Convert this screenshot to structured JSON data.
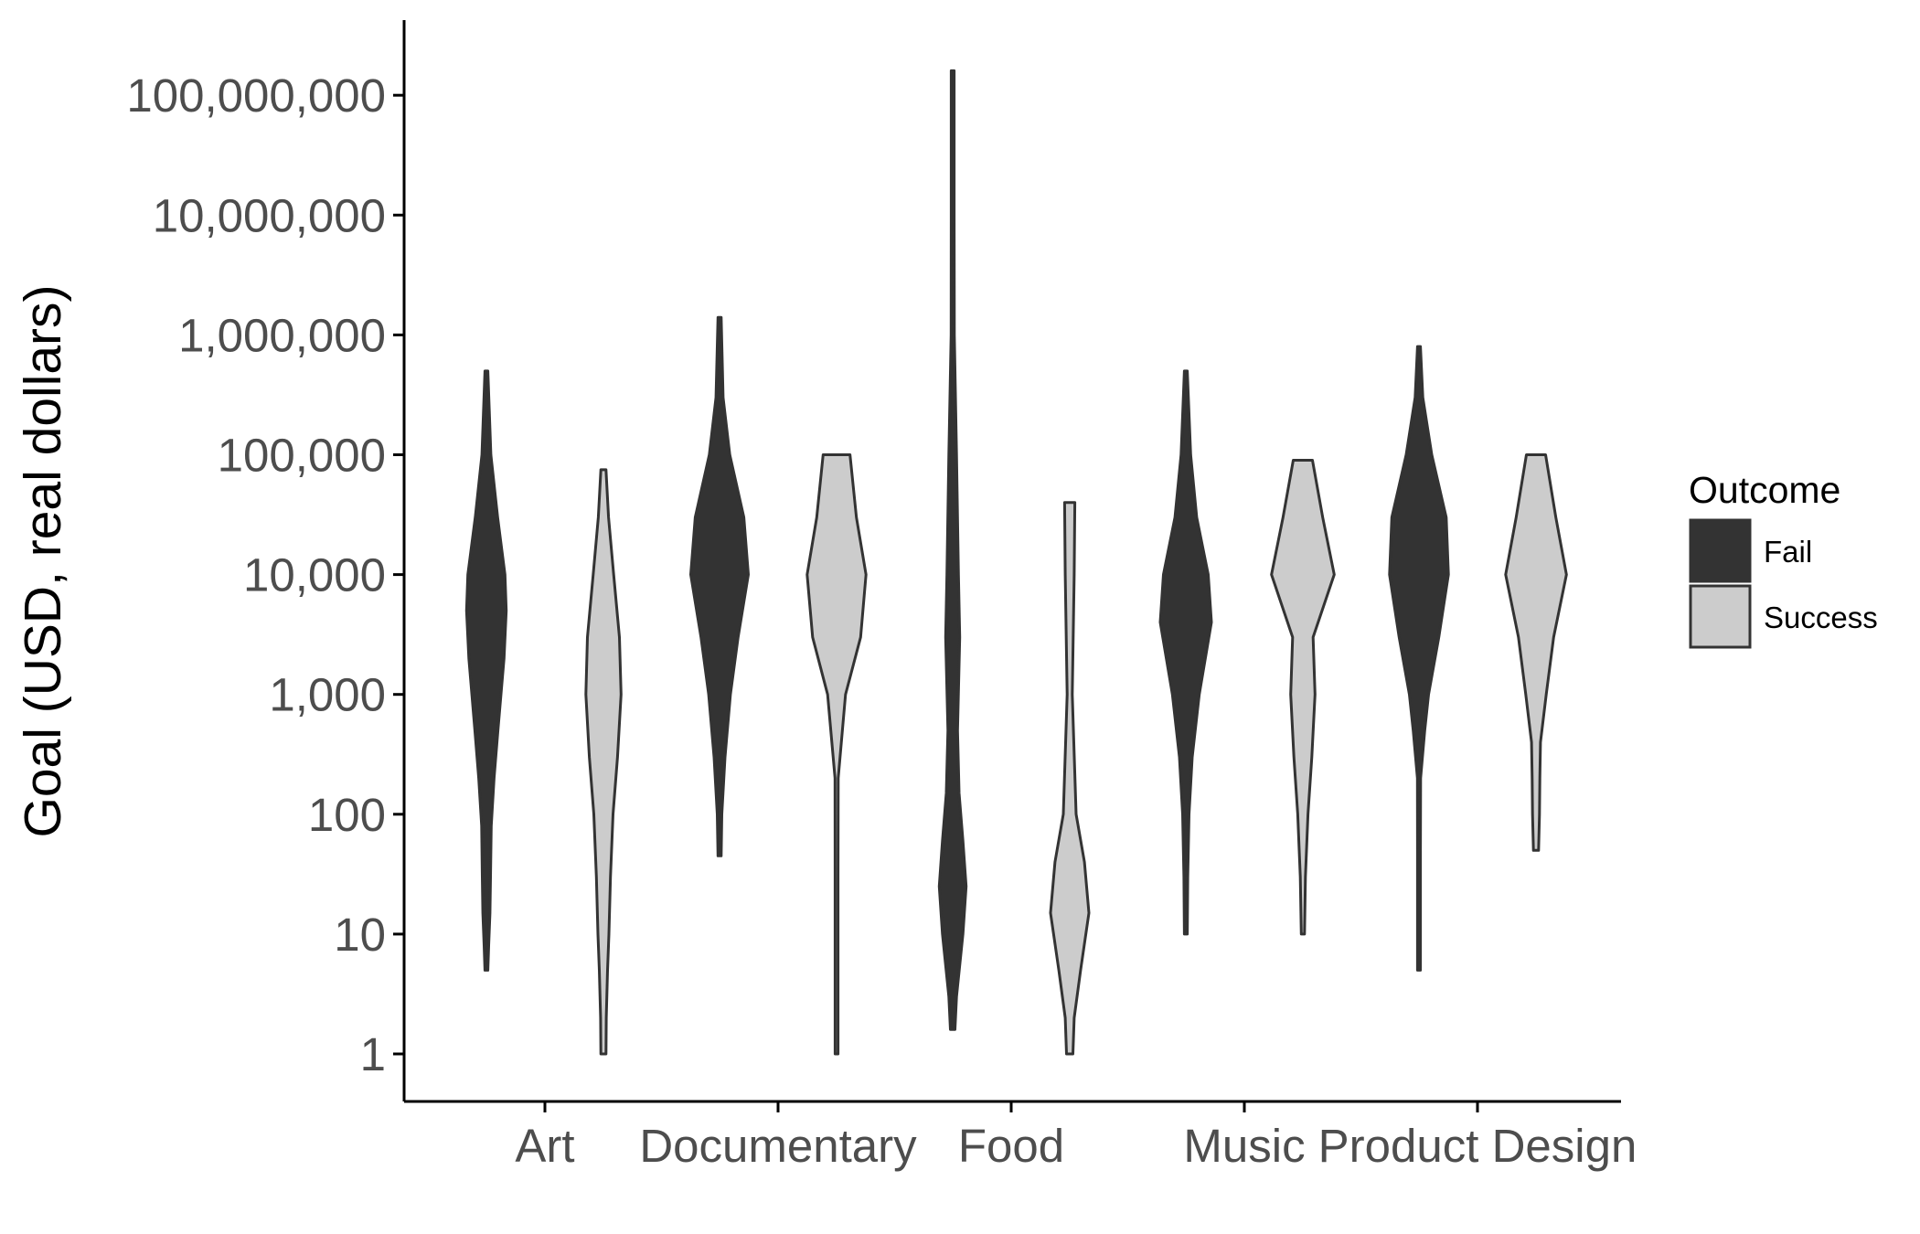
{
  "chart_data": {
    "type": "violin",
    "ylabel": "Goal (USD, real dollars)",
    "xlabel": "",
    "y_scale": "log10",
    "ylim": [
      0.6,
      400000000
    ],
    "y_ticks": [
      {
        "value": 1,
        "label": "1"
      },
      {
        "value": 10,
        "label": "10"
      },
      {
        "value": 100,
        "label": "100"
      },
      {
        "value": 1000,
        "label": "1,000"
      },
      {
        "value": 10000,
        "label": "10,000"
      },
      {
        "value": 100000,
        "label": "100,000"
      },
      {
        "value": 1000000,
        "label": "1,000,000"
      },
      {
        "value": 10000000,
        "label": "10,000,000"
      },
      {
        "value": 100000000,
        "label": "100,000,000"
      }
    ],
    "categories": [
      "Art",
      "Documentary",
      "Food",
      "Music",
      "Product Design"
    ],
    "legend": {
      "title": "Outcome",
      "position": "right",
      "entries": [
        {
          "name": "Fail",
          "color": "#333333"
        },
        {
          "name": "Success",
          "color": "#cccccc"
        }
      ]
    },
    "violins": [
      {
        "category": "Art",
        "outcome": "Fail",
        "color": "#333333",
        "profile": [
          [
            5,
            0.02
          ],
          [
            8,
            0.07
          ],
          [
            15,
            0.11
          ],
          [
            30,
            0.13
          ],
          [
            80,
            0.15
          ],
          [
            200,
            0.24
          ],
          [
            500,
            0.36
          ],
          [
            2000,
            0.55
          ],
          [
            5000,
            0.62
          ],
          [
            10000,
            0.58
          ],
          [
            30000,
            0.35
          ],
          [
            100000,
            0.14
          ],
          [
            500000,
            0.04
          ]
        ]
      },
      {
        "category": "Art",
        "outcome": "Success",
        "color": "#cccccc",
        "profile": [
          [
            1,
            0.08
          ],
          [
            2,
            0.09
          ],
          [
            5,
            0.13
          ],
          [
            10,
            0.17
          ],
          [
            30,
            0.22
          ],
          [
            100,
            0.3
          ],
          [
            300,
            0.44
          ],
          [
            1000,
            0.55
          ],
          [
            3000,
            0.5
          ],
          [
            10000,
            0.32
          ],
          [
            30000,
            0.16
          ],
          [
            75000,
            0.08
          ]
        ]
      },
      {
        "category": "Documentary",
        "outcome": "Fail",
        "color": "#333333",
        "profile": [
          [
            45,
            0.05
          ],
          [
            100,
            0.07
          ],
          [
            300,
            0.17
          ],
          [
            1000,
            0.34
          ],
          [
            3000,
            0.58
          ],
          [
            10000,
            0.9
          ],
          [
            30000,
            0.76
          ],
          [
            100000,
            0.32
          ],
          [
            300000,
            0.11
          ],
          [
            1400000,
            0.05
          ]
        ]
      },
      {
        "category": "Documentary",
        "outcome": "Success",
        "color": "#cccccc",
        "profile": [
          [
            1,
            0.02
          ],
          [
            5,
            0.03
          ],
          [
            30,
            0.03
          ],
          [
            200,
            0.05
          ],
          [
            1000,
            0.28
          ],
          [
            3000,
            0.75
          ],
          [
            10000,
            0.92
          ],
          [
            30000,
            0.62
          ],
          [
            100000,
            0.42
          ]
        ]
      },
      {
        "category": "Food",
        "outcome": "Fail",
        "color": "#333333",
        "profile": [
          [
            1.6,
            0.07
          ],
          [
            3,
            0.12
          ],
          [
            10,
            0.32
          ],
          [
            25,
            0.42
          ],
          [
            60,
            0.32
          ],
          [
            150,
            0.2
          ],
          [
            500,
            0.15
          ],
          [
            3000,
            0.22
          ],
          [
            10000,
            0.18
          ],
          [
            100000,
            0.12
          ],
          [
            1000000,
            0.05
          ],
          [
            10000000,
            0.01
          ],
          [
            160000000,
            0.01
          ]
        ]
      },
      {
        "category": "Food",
        "outcome": "Success",
        "color": "#cccccc",
        "profile": [
          [
            1,
            0.1
          ],
          [
            2,
            0.14
          ],
          [
            5,
            0.34
          ],
          [
            15,
            0.6
          ],
          [
            40,
            0.46
          ],
          [
            100,
            0.2
          ],
          [
            1000,
            0.08
          ],
          [
            10000,
            0.14
          ],
          [
            40000,
            0.16
          ]
        ]
      },
      {
        "category": "Music",
        "outcome": "Fail",
        "color": "#333333",
        "profile": [
          [
            10,
            0.04
          ],
          [
            30,
            0.06
          ],
          [
            100,
            0.1
          ],
          [
            300,
            0.2
          ],
          [
            1000,
            0.42
          ],
          [
            4000,
            0.8
          ],
          [
            10000,
            0.7
          ],
          [
            30000,
            0.34
          ],
          [
            100000,
            0.15
          ],
          [
            500000,
            0.03
          ]
        ]
      },
      {
        "category": "Music",
        "outcome": "Success",
        "color": "#cccccc",
        "profile": [
          [
            10,
            0.05
          ],
          [
            30,
            0.08
          ],
          [
            100,
            0.16
          ],
          [
            300,
            0.28
          ],
          [
            1000,
            0.38
          ],
          [
            3000,
            0.32
          ],
          [
            10000,
            0.98
          ],
          [
            30000,
            0.62
          ],
          [
            90000,
            0.3
          ]
        ]
      },
      {
        "category": "Product Design",
        "outcome": "Fail",
        "color": "#333333",
        "profile": [
          [
            5,
            0.02
          ],
          [
            50,
            0.03
          ],
          [
            200,
            0.05
          ],
          [
            500,
            0.18
          ],
          [
            1000,
            0.3
          ],
          [
            3000,
            0.62
          ],
          [
            10000,
            0.92
          ],
          [
            30000,
            0.85
          ],
          [
            100000,
            0.4
          ],
          [
            300000,
            0.12
          ],
          [
            800000,
            0.04
          ]
        ]
      },
      {
        "category": "Product Design",
        "outcome": "Success",
        "color": "#cccccc",
        "profile": [
          [
            50,
            0.08
          ],
          [
            100,
            0.11
          ],
          [
            200,
            0.12
          ],
          [
            400,
            0.14
          ],
          [
            1000,
            0.32
          ],
          [
            3000,
            0.55
          ],
          [
            10000,
            0.95
          ],
          [
            30000,
            0.62
          ],
          [
            100000,
            0.3
          ]
        ]
      }
    ]
  }
}
